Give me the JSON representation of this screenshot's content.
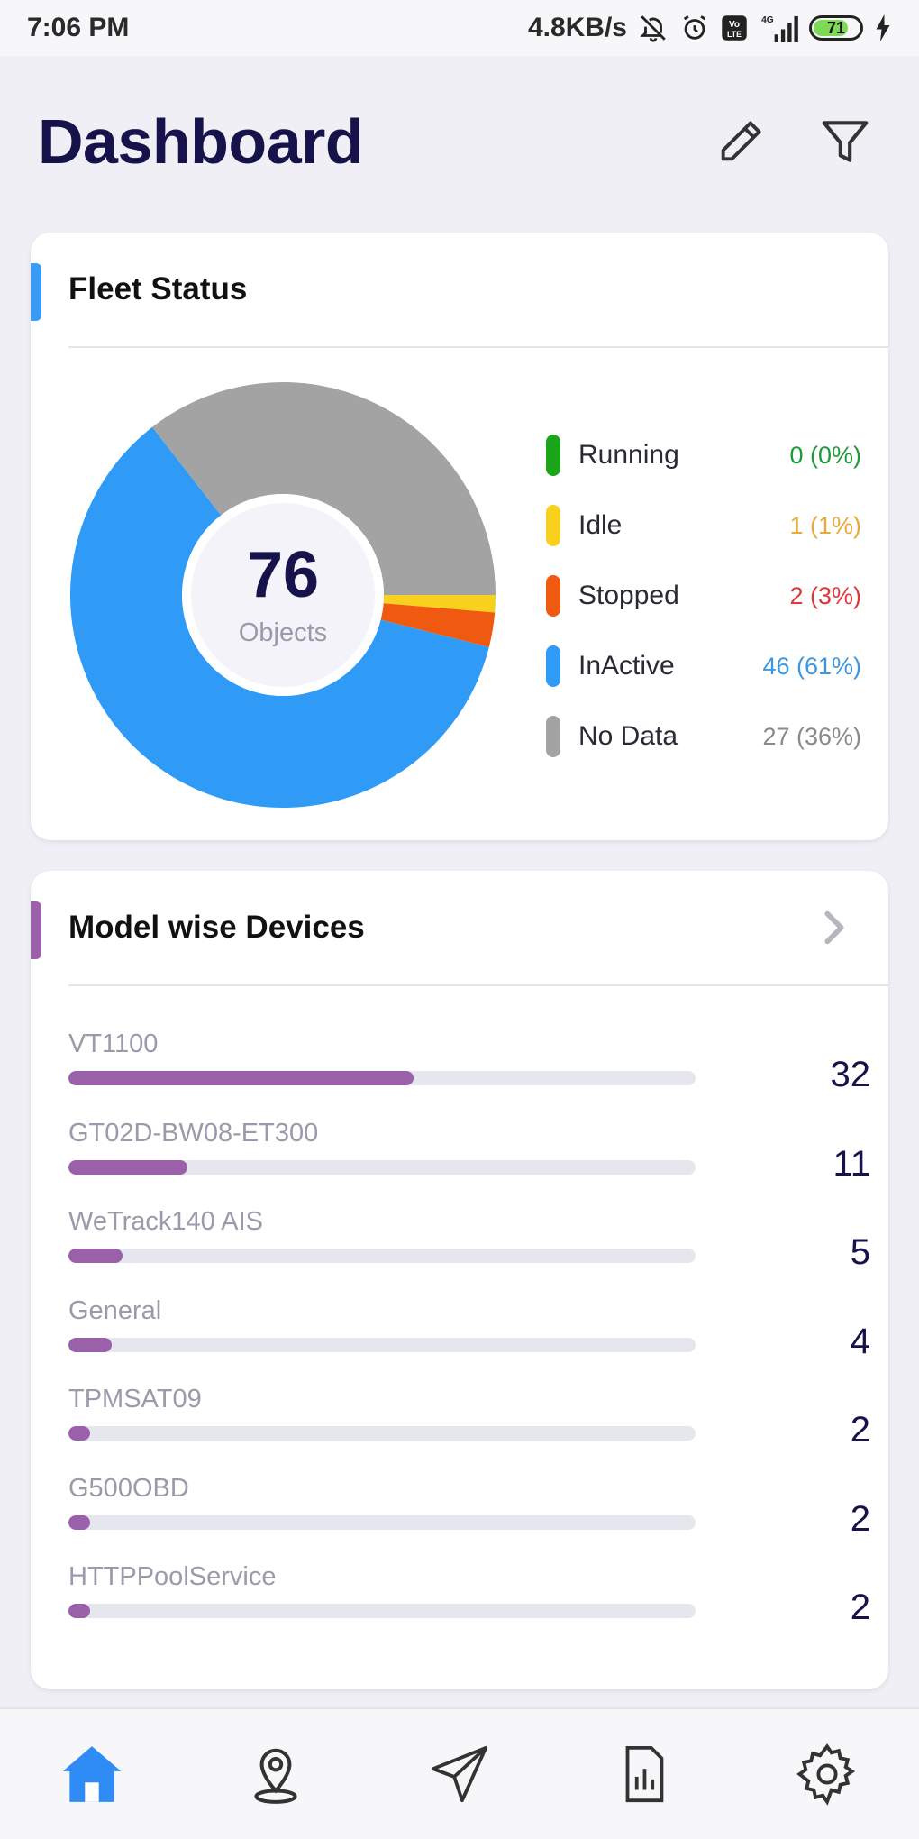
{
  "status_bar": {
    "time": "7:06 PM",
    "speed": "4.8KB/s",
    "network": "4G",
    "battery": "71",
    "volte": "Vo LTE"
  },
  "header": {
    "title": "Dashboard",
    "edit_icon": "pencil-icon",
    "filter_icon": "filter-icon"
  },
  "fleet_status": {
    "title": "Fleet Status",
    "accent_color": "#3a9bf5",
    "total": "76",
    "total_label": "Objects",
    "items": [
      {
        "name": "Running",
        "value": "0 (0%)",
        "count": 0,
        "color": "#1aa51a",
        "value_color": "#1f9a3a"
      },
      {
        "name": "Idle",
        "value": "1 (1%)",
        "count": 1,
        "color": "#f7d11e",
        "value_color": "#e9a93a"
      },
      {
        "name": "Stopped",
        "value": "2 (3%)",
        "count": 2,
        "color": "#f05a10",
        "value_color": "#e0383a"
      },
      {
        "name": "InActive",
        "value": "46 (61%)",
        "count": 46,
        "color": "#2f9bf7",
        "value_color": "#3c97e0"
      },
      {
        "name": "No Data",
        "value": "27 (36%)",
        "count": 27,
        "color": "#a3a3a3",
        "value_color": "#8a8a8a"
      }
    ]
  },
  "model_devices": {
    "title": "Model wise Devices",
    "accent_color": "#9a61aa",
    "max": 32,
    "items": [
      {
        "name": "VT1100",
        "count": "32",
        "value": 17.6
      },
      {
        "name": "GT02D-BW08-ET300",
        "count": "11",
        "value": 6.05
      },
      {
        "name": "WeTrack140 AIS",
        "count": "5",
        "value": 2.75
      },
      {
        "name": "General",
        "count": "4",
        "value": 2.2
      },
      {
        "name": "TPMSAT09",
        "count": "2",
        "value": 1.1
      },
      {
        "name": "G500OBD",
        "count": "2",
        "value": 1.1
      },
      {
        "name": "HTTPPoolService",
        "count": "2",
        "value": 1.1
      }
    ]
  },
  "bottom_nav": {
    "active_color": "#2f8cf7",
    "items": [
      "home-icon",
      "location-pin-icon",
      "navigate-icon",
      "reports-icon",
      "settings-icon"
    ]
  }
}
